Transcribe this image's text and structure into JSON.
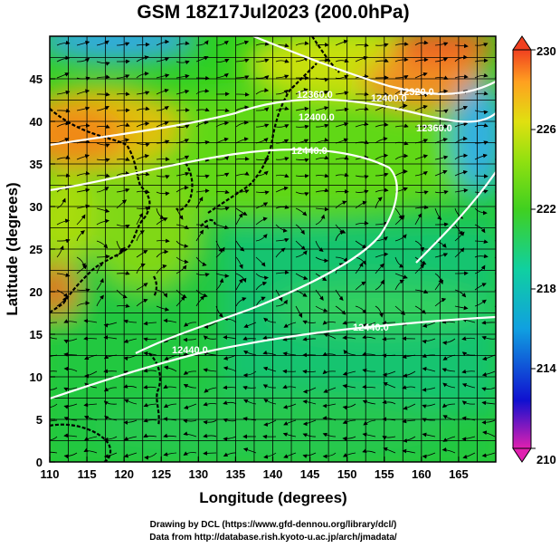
{
  "title": "GSM 18Z17Jul2023 (200.0hPa)",
  "x_axis": {
    "label": "Longitude (degrees)",
    "ticks": [
      "110",
      "115",
      "120",
      "125",
      "130",
      "135",
      "140",
      "145",
      "150",
      "155",
      "160",
      "165"
    ],
    "min": 110,
    "max": 170
  },
  "y_axis": {
    "label": "Latitude (degrees)",
    "ticks": [
      "0",
      "5",
      "10",
      "15",
      "20",
      "25",
      "30",
      "35",
      "40",
      "45"
    ],
    "min": 0,
    "max": 50
  },
  "colorbar": {
    "labels": [
      "230",
      "226",
      "222",
      "218",
      "214",
      "210"
    ],
    "min": 210,
    "max": 230,
    "colors": [
      "#e020b0",
      "#1010d0",
      "#10a0e0",
      "#10d0a0",
      "#40d020",
      "#90e010",
      "#e0e010",
      "#ffa020",
      "#f04020"
    ]
  },
  "contour_labels": [
    "12360.0",
    "12400.0",
    "12440.0",
    "12400.0",
    "12320.0",
    "12360.0",
    "12440.0",
    "12440.0"
  ],
  "footer": {
    "line1": "Drawing by DCL (https://www.gfd-dennou.org/library/dcl/)",
    "line2": "Data from http://database.rish.kyoto-u.ac.jp/arch/jmadata/"
  },
  "chart_data": {
    "type": "heatmap",
    "title": "GSM 18Z17Jul2023 (200.0hPa)",
    "xlabel": "Longitude (degrees)",
    "ylabel": "Latitude (degrees)",
    "xlim": [
      110,
      170
    ],
    "ylim": [
      0,
      50
    ],
    "colorbar_range": [
      210,
      230
    ],
    "contour_values": [
      12320.0,
      12360.0,
      12400.0,
      12440.0
    ],
    "grid": true
  }
}
